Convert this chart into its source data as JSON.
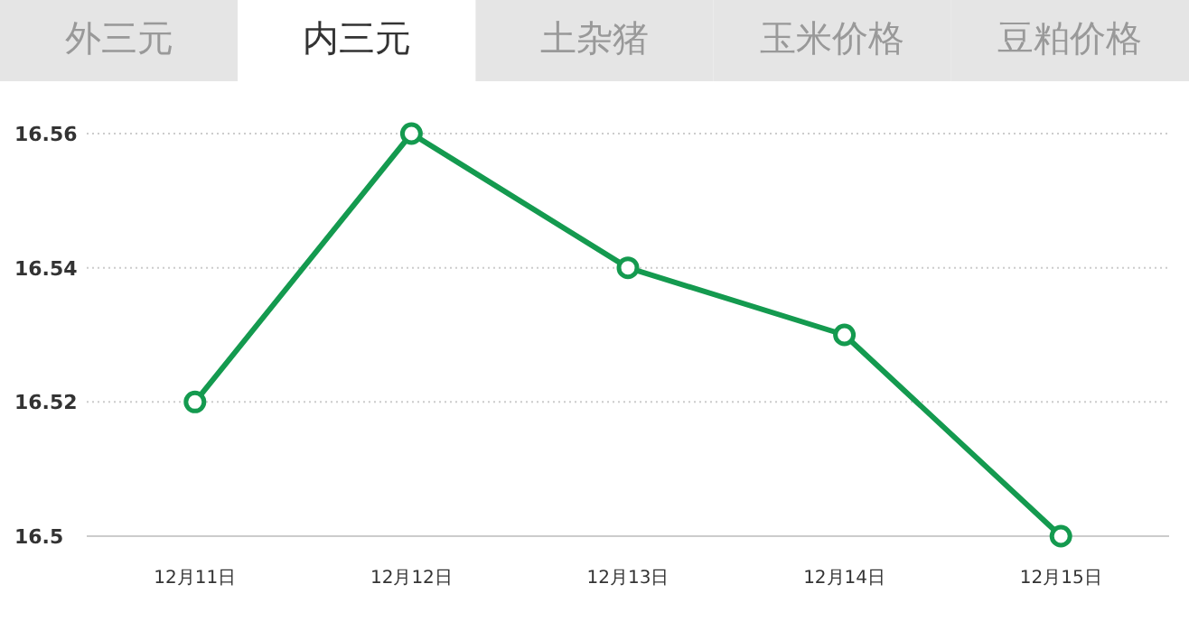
{
  "chart_data": {
    "type": "line",
    "annotations": [
      "外三元",
      "内三元",
      "土杂猪",
      "玉米价格",
      "豆粕价格"
    ],
    "categories": [
      "12月11日",
      "12月12日",
      "12月13日",
      "12月14日",
      "12月15日"
    ],
    "series": [
      {
        "color": "#149a4f",
        "values": [
          16.52,
          16.56,
          16.54,
          16.53,
          16.5
        ]
      }
    ],
    "ylim": [
      16.5,
      16.56
    ],
    "yticks": [
      16.5,
      16.52,
      16.54,
      16.56
    ],
    "grid": "y",
    "marker": "circle",
    "line_style": "solid"
  }
}
